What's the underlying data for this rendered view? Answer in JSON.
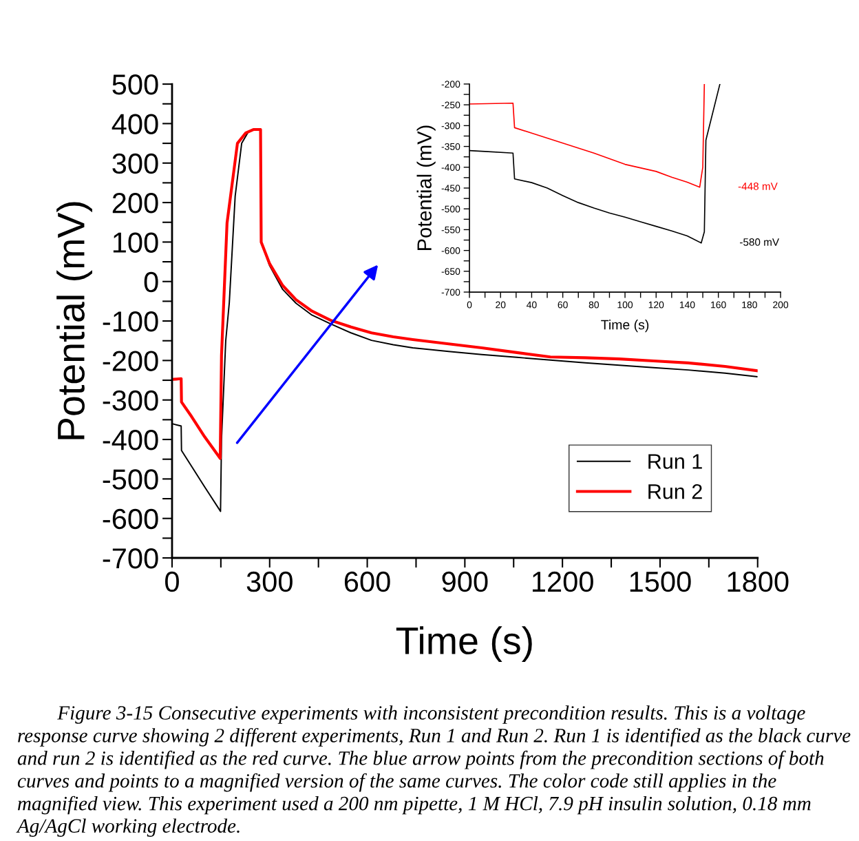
{
  "chart_data": [
    {
      "type": "line",
      "xlabel": "Time (s)",
      "ylabel": "Potential (mV)",
      "xlim": [
        0,
        1800
      ],
      "ylim": [
        -700,
        500
      ],
      "xticks": [
        0,
        {
          "value": 150,
          "label": null
        },
        300,
        {
          "value": 450,
          "label": null
        },
        600,
        {
          "value": 750,
          "label": null
        },
        900,
        {
          "value": 1050,
          "label": null
        },
        1200,
        {
          "value": 1350,
          "label": null
        },
        1500,
        {
          "value": 1650,
          "label": null
        },
        1800
      ],
      "yticks": [
        -700,
        {
          "value": -650,
          "label": null
        },
        -600,
        {
          "value": -550,
          "label": null
        },
        -500,
        {
          "value": -450,
          "label": null
        },
        -400,
        {
          "value": -350,
          "label": null
        },
        -300,
        {
          "value": -250,
          "label": null
        },
        -200,
        {
          "value": -150,
          "label": null
        },
        -100,
        {
          "value": -50,
          "label": null
        },
        0,
        {
          "value": 50,
          "label": null
        },
        100,
        {
          "value": 150,
          "label": null
        },
        200,
        {
          "value": 250,
          "label": null
        },
        300,
        {
          "value": 350,
          "label": null
        },
        400,
        {
          "value": 450,
          "label": null
        },
        500
      ],
      "legend": "lower right",
      "grid": false,
      "series": [
        {
          "name": "Run 1",
          "color": "#000000",
          "x": [
            0,
            28,
            29,
            60,
            100,
            149,
            152,
            165,
            176,
            194,
            214,
            235,
            250,
            272,
            274,
            300,
            340,
            381,
            430,
            487,
            550,
            613,
            680,
            740,
            850,
            952,
            1060,
            1163,
            1270,
            1375,
            1480,
            1586,
            1700,
            1798
          ],
          "values": [
            -360,
            -366,
            -428,
            -468,
            -520,
            -582,
            -400,
            -150,
            -53,
            216,
            350,
            380,
            385,
            385,
            100,
            40,
            -20,
            -55,
            -85,
            -107,
            -130,
            -149,
            -160,
            -168,
            -177,
            -185,
            -192,
            -199,
            -206,
            -212,
            -218,
            -224,
            -232,
            -241
          ]
        },
        {
          "name": "Run 2",
          "color": "#ff0000",
          "x": [
            0,
            28,
            29,
            60,
            100,
            148,
            152,
            169,
            201,
            226,
            250,
            272,
            274,
            300,
            340,
            381,
            430,
            487,
            550,
            613,
            680,
            740,
            850,
            952,
            1060,
            1163,
            1270,
            1375,
            1480,
            1586,
            1700,
            1798
          ],
          "values": [
            -248,
            -246,
            -305,
            -342,
            -393,
            -448,
            -187,
            148,
            350,
            376,
            385,
            385,
            100,
            45,
            -10,
            -46,
            -75,
            -98,
            -115,
            -130,
            -140,
            -147,
            -158,
            -168,
            -180,
            -191,
            -193,
            -196,
            -201,
            -206,
            -215,
            -226
          ]
        }
      ],
      "annotations": [
        "Figure 3-15 Consecutive experiments with inconsistent precondition results. This is a voltage response curve showing 2 different experiments, Run 1 and Run 2. Run 1 is identified as the black curve and run 2 is identified as the red curve. The blue arrow points from the precondition sections of both curves and points to a magnified version of the same curves. The color code still applies in the magnified view. This experiment used a 200 nm pipette, 1 M HCl, 7.9 pH insulin solution, 0.18 mm Ag/AgCl working electrode."
      ]
    },
    {
      "type": "line",
      "xlabel": "Time (s)",
      "ylabel": "Potential (mV)",
      "xlim": [
        0,
        200
      ],
      "ylim": [
        -700,
        -200
      ],
      "xticks": [
        0,
        {
          "value": 10,
          "label": null
        },
        20,
        {
          "value": 30,
          "label": null
        },
        40,
        {
          "value": 50,
          "label": null
        },
        60,
        {
          "value": 70,
          "label": null
        },
        80,
        {
          "value": 90,
          "label": null
        },
        100,
        {
          "value": 110,
          "label": null
        },
        120,
        {
          "value": 130,
          "label": null
        },
        140,
        {
          "value": 150,
          "label": null
        },
        160,
        {
          "value": 170,
          "label": null
        },
        180,
        {
          "value": 190,
          "label": null
        },
        200
      ],
      "yticks": [
        -700,
        {
          "value": -675,
          "label": null
        },
        -650,
        {
          "value": -625,
          "label": null
        },
        -600,
        {
          "value": -575,
          "label": null
        },
        -550,
        {
          "value": -525,
          "label": null
        },
        -500,
        {
          "value": -475,
          "label": null
        },
        -450,
        {
          "value": -425,
          "label": null
        },
        -400,
        {
          "value": -375,
          "label": null
        },
        -350,
        {
          "value": -325,
          "label": null
        },
        -300,
        {
          "value": -275,
          "label": null
        },
        -250,
        {
          "value": -225,
          "label": null
        },
        -200
      ],
      "grid": false,
      "series": [
        {
          "color": "#000000",
          "x": [
            0,
            10,
            28,
            29,
            40,
            50,
            60,
            70,
            80,
            90,
            100,
            110,
            120,
            130,
            140,
            149,
            151,
            152,
            161
          ],
          "values": [
            -360,
            -362,
            -366,
            -428,
            -437,
            -450,
            -468,
            -485,
            -498,
            -510,
            -520,
            -531,
            -542,
            -553,
            -565,
            -582,
            -555,
            -335,
            -200
          ]
        },
        {
          "color": "#ff0000",
          "x": [
            0,
            28,
            29,
            40,
            60,
            80,
            100,
            120,
            130,
            140,
            148,
            150,
            151
          ],
          "values": [
            -248,
            -246,
            -305,
            -318,
            -342,
            -366,
            -393,
            -410,
            -424,
            -436,
            -448,
            -400,
            -200
          ]
        }
      ],
      "annotations": [
        "-448 mV",
        "-580 mV"
      ]
    }
  ]
}
